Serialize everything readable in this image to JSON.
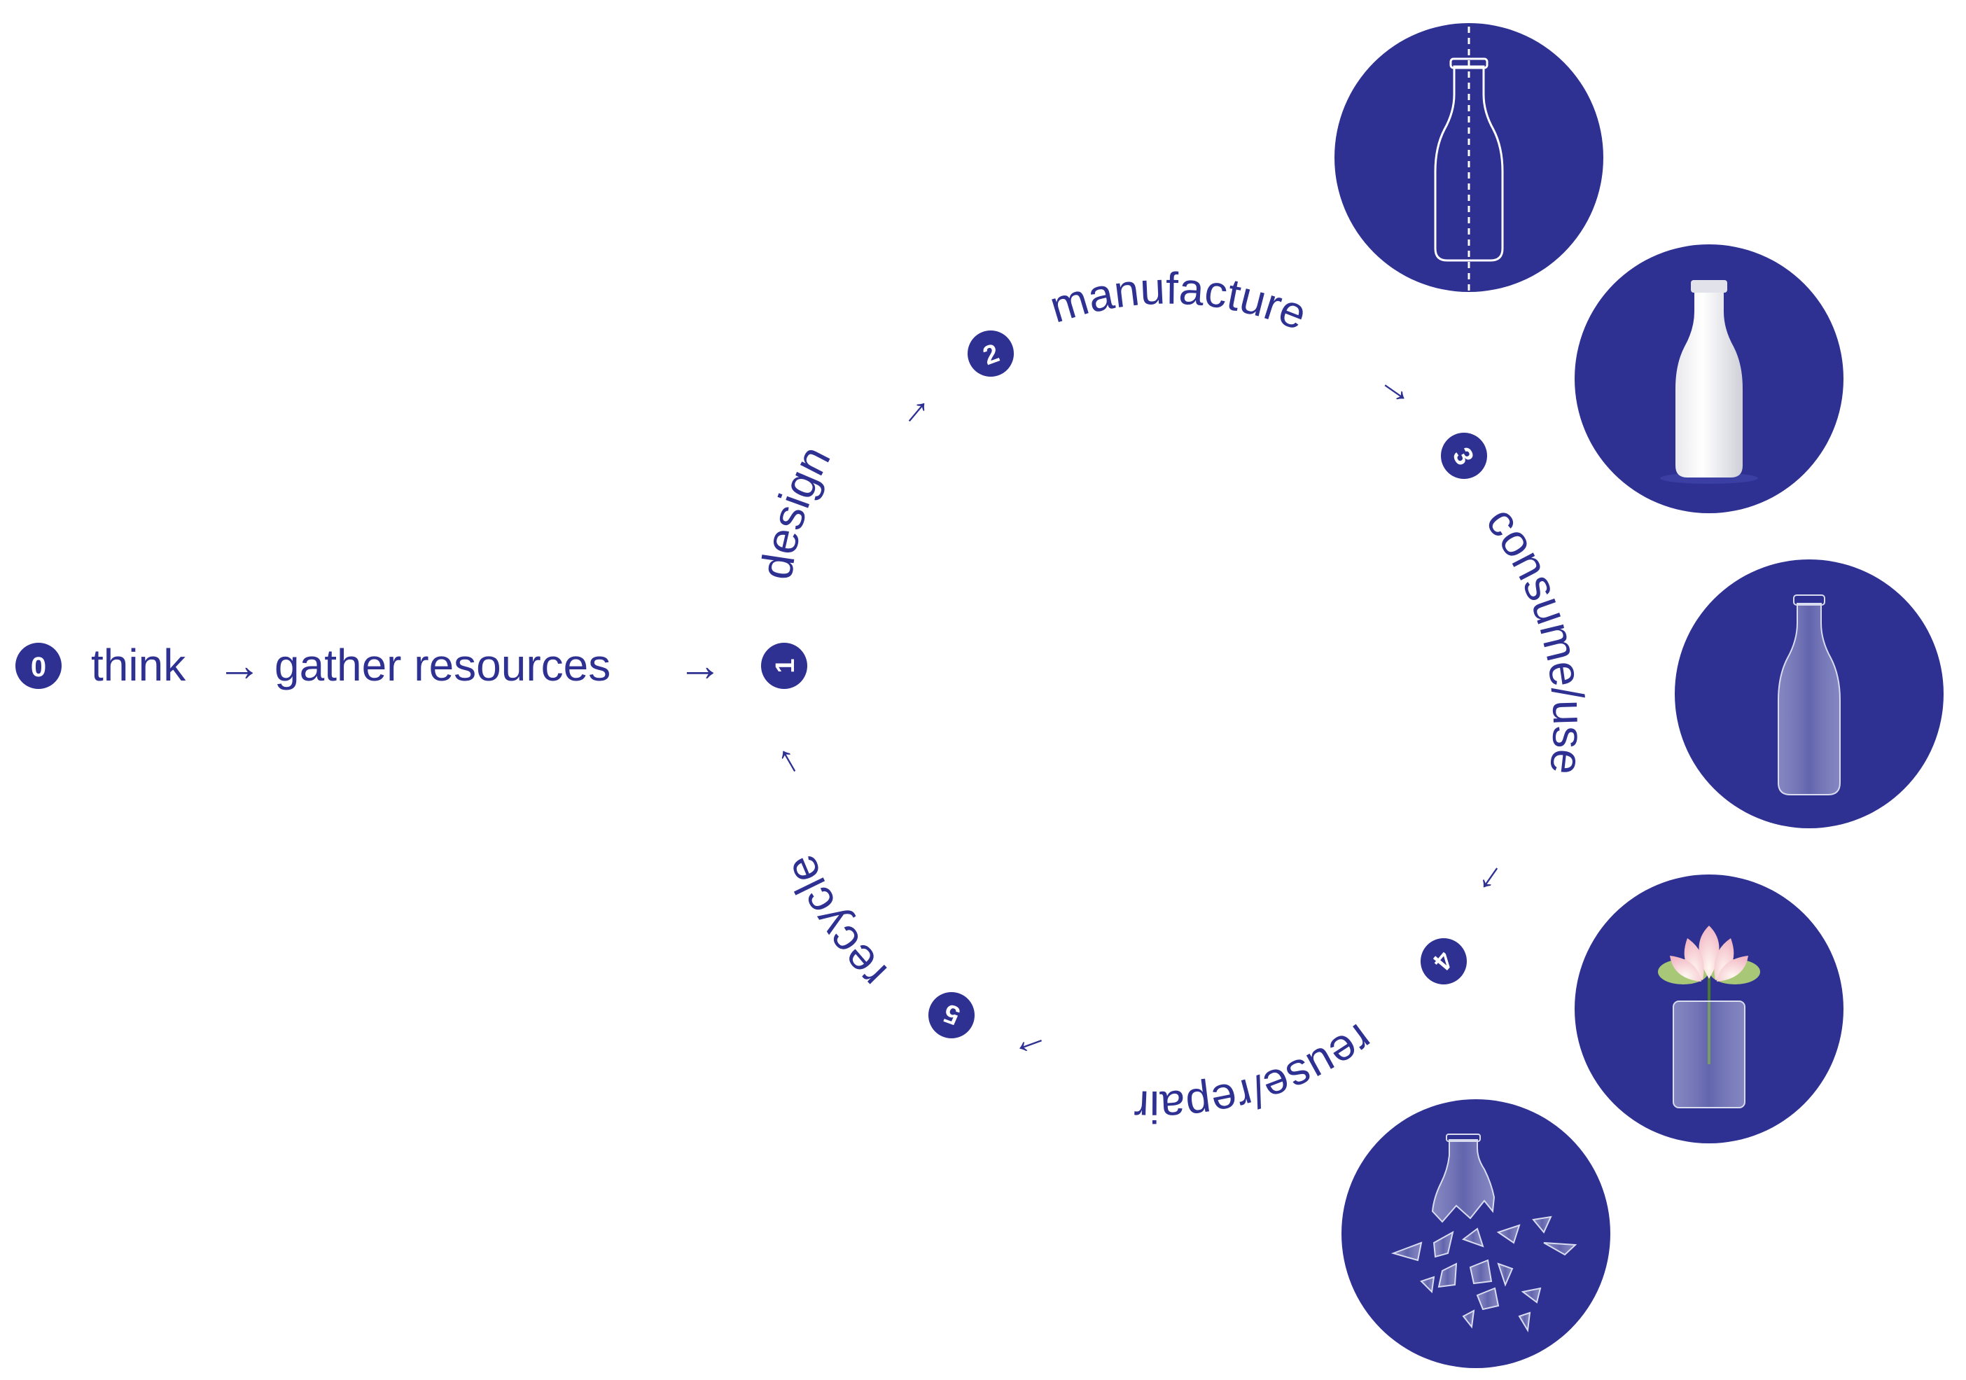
{
  "colors": {
    "primary": "#2e3192",
    "background": "#ffffff",
    "icon_stroke": "#ffffff"
  },
  "intro": {
    "step_number": "0",
    "think": "think",
    "gather": "gather resources",
    "arrow_glyph": "→"
  },
  "cycle": {
    "steps": [
      {
        "number": "1",
        "label": "design"
      },
      {
        "number": "2",
        "label": "manufacture"
      },
      {
        "number": "3",
        "label": "consume/use"
      },
      {
        "number": "4",
        "label": "reuse/repair"
      },
      {
        "number": "5",
        "label": "recycle"
      }
    ],
    "arrow_glyph": "→"
  },
  "illustrations": [
    {
      "name": "bottle-outline-design-icon",
      "depicts": "bottle design outline with dashed center line"
    },
    {
      "name": "milk-bottle-icon",
      "depicts": "full milk bottle"
    },
    {
      "name": "empty-bottle-icon",
      "depicts": "empty glass bottle"
    },
    {
      "name": "flower-vase-icon",
      "depicts": "lotus flower in glass"
    },
    {
      "name": "broken-glass-icon",
      "depicts": "shattered bottle"
    }
  ]
}
